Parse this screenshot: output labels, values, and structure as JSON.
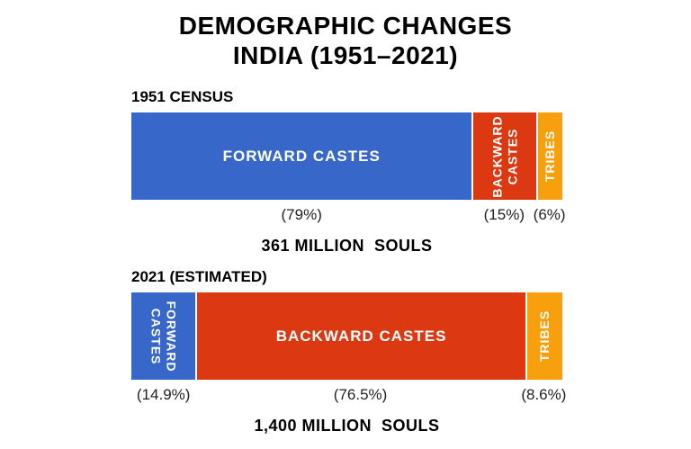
{
  "title": {
    "line1": "DEMOGRAPHIC CHANGES",
    "line2": "INDIA (1951–2021)"
  },
  "colors": {
    "forward_castes": "#3767C9",
    "backward_castes": "#DC3912",
    "tribes": "#F89F0E",
    "title_text": "#000000",
    "percent_text": "#222222",
    "background": "#FFFFFF",
    "segment_label_text": "#FFFFFF"
  },
  "chart_data": [
    {
      "type": "bar",
      "layout": "horizontal-stacked",
      "label": "1951 CENSUS",
      "total_label": "361 MILLION  SOULS",
      "total_million_souls": 361,
      "categories": [
        "FORWARD CASTES",
        "BACKWARD CASTES",
        "TRIBES"
      ],
      "values_pct": [
        79,
        15,
        6
      ],
      "segments": [
        {
          "name": "FORWARD CASTES",
          "lines": [
            "FORWARD CASTES"
          ],
          "value_pct": 79,
          "pct_label": "(79%)",
          "color": "#3767C9",
          "label_orientation": "horizontal"
        },
        {
          "name": "BACKWARD CASTES",
          "lines": [
            "BACKWARD",
            "CASTES"
          ],
          "value_pct": 15,
          "pct_label": "(15%)",
          "color": "#DC3912",
          "label_orientation": "vertical-bottom-up"
        },
        {
          "name": "TRIBES",
          "lines": [
            "TRIBES"
          ],
          "value_pct": 6,
          "pct_label": "(6%)",
          "color": "#F89F0E",
          "label_orientation": "vertical-bottom-up"
        }
      ]
    },
    {
      "type": "bar",
      "layout": "horizontal-stacked",
      "label": "2021 (ESTIMATED)",
      "total_label": "1,400 MILLION  SOULS",
      "total_million_souls": 1400,
      "categories": [
        "FORWARD CASTES",
        "BACKWARD CASTES",
        "TRIBES"
      ],
      "values_pct": [
        14.9,
        76.5,
        8.6
      ],
      "segments": [
        {
          "name": "FORWARD CASTES",
          "lines": [
            "FORWARD",
            "CASTES"
          ],
          "value_pct": 14.9,
          "pct_label": "(14.9%)",
          "color": "#3767C9",
          "label_orientation": "vertical-top-down"
        },
        {
          "name": "BACKWARD CASTES",
          "lines": [
            "BACKWARD CASTES"
          ],
          "value_pct": 76.5,
          "pct_label": "(76.5%)",
          "color": "#DC3912",
          "label_orientation": "horizontal"
        },
        {
          "name": "TRIBES",
          "lines": [
            "TRIBES"
          ],
          "value_pct": 8.6,
          "pct_label": "(8.6%)",
          "color": "#F89F0E",
          "label_orientation": "vertical-bottom-up"
        }
      ]
    }
  ]
}
